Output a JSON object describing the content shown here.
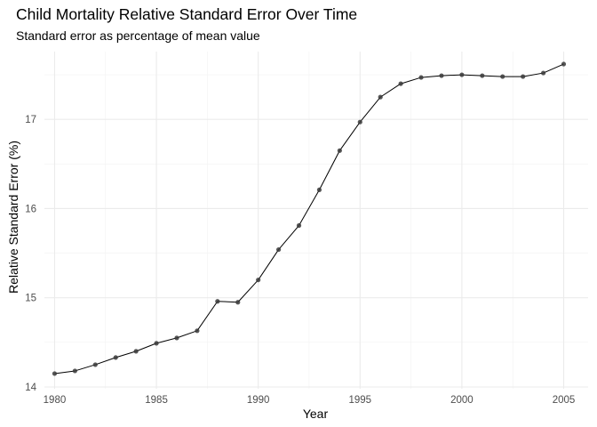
{
  "chart_data": {
    "type": "line",
    "title": "Child Mortality Relative Standard Error Over Time",
    "subtitle": "Standard error as percentage of mean value",
    "xlabel": "Year",
    "ylabel": "Relative Standard Error (%)",
    "x_ticks": [
      1980,
      1985,
      1990,
      1995,
      2000,
      2005
    ],
    "y_ticks": [
      14,
      15,
      16,
      17
    ],
    "xlim": [
      1979.5,
      2006.2
    ],
    "ylim": [
      13.98,
      17.76
    ],
    "grid": true,
    "legend": "none",
    "line_color": "#000000",
    "point_color": "#3a3a3a",
    "x": [
      1980,
      1981,
      1982,
      1983,
      1984,
      1985,
      1986,
      1987,
      1988,
      1989,
      1990,
      1991,
      1992,
      1993,
      1994,
      1995,
      1996,
      1997,
      1998,
      1999,
      2000,
      2001,
      2002,
      2003,
      2004,
      2005
    ],
    "y": [
      14.15,
      14.18,
      14.25,
      14.33,
      14.4,
      14.49,
      14.55,
      14.63,
      14.96,
      14.95,
      15.2,
      15.54,
      15.81,
      16.21,
      16.65,
      16.97,
      17.25,
      17.4,
      17.47,
      17.49,
      17.5,
      17.49,
      17.48,
      17.48,
      17.52,
      17.62
    ]
  }
}
